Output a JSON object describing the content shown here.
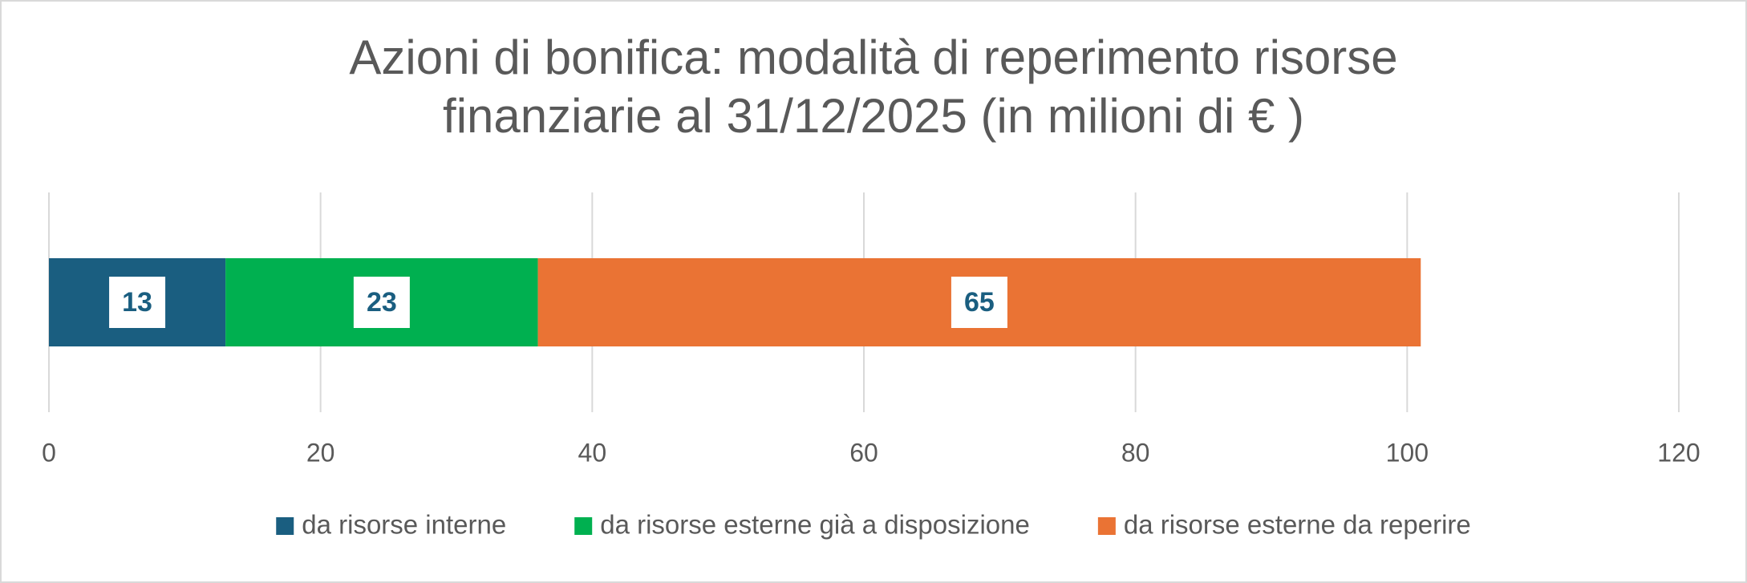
{
  "chart_data": {
    "type": "stacked-bar-horizontal",
    "title": [
      "Azioni di bonifica: modalità di reperimento risorse",
      "finanziarie al 31/12/2025 (in milioni di € )"
    ],
    "series": [
      {
        "name": "da risorse interne",
        "color": "#1a5e80",
        "values": [
          13
        ]
      },
      {
        "name": "da risorse esterne già a disposizione",
        "color": "#00b050",
        "values": [
          23
        ]
      },
      {
        "name": "da risorse esterne da reperire",
        "color": "#ea7334",
        "values": [
          65
        ]
      }
    ],
    "xlim": [
      0,
      120
    ],
    "xticks": [
      0,
      20,
      40,
      60,
      80,
      100,
      120
    ],
    "grid": true,
    "legend": "bottom"
  }
}
